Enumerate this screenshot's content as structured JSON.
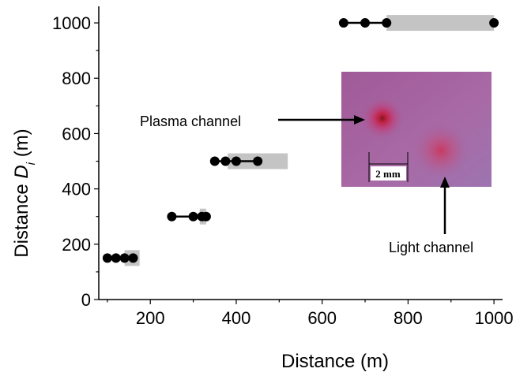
{
  "chart_data": {
    "type": "scatter",
    "xlabel": "Distance (m)",
    "ylabel_main": "Distance ",
    "ylabel_italic": "D",
    "ylabel_sub": "i",
    "ylabel_unit": " (m)",
    "xlim": [
      80,
      1020
    ],
    "ylim": [
      0,
      1060
    ],
    "xticks": [
      200,
      400,
      600,
      800,
      1000
    ],
    "yticks": [
      0,
      200,
      400,
      600,
      800,
      1000
    ],
    "grid": false,
    "groups": [
      {
        "y": 150,
        "points": [
          100,
          120,
          140,
          160
        ],
        "range": [
          140,
          175
        ]
      },
      {
        "y": 300,
        "points": [
          250,
          300,
          320,
          330
        ],
        "range": [
          315,
          330
        ]
      },
      {
        "y": 500,
        "points": [
          350,
          375,
          400,
          450
        ],
        "range": [
          380,
          520
        ]
      },
      {
        "y": 1000,
        "points": [
          650,
          700,
          750,
          1000
        ],
        "range": [
          750,
          1000
        ]
      }
    ],
    "inset": {
      "scale_label": "2 mm",
      "annotations": [
        "Plasma channel",
        "Light channel"
      ]
    },
    "colors": {
      "marker": "#000000",
      "range_bar": "#c4c4c4",
      "inset_bg": "#a4649e",
      "inset_spot": "#c01a3e"
    }
  }
}
